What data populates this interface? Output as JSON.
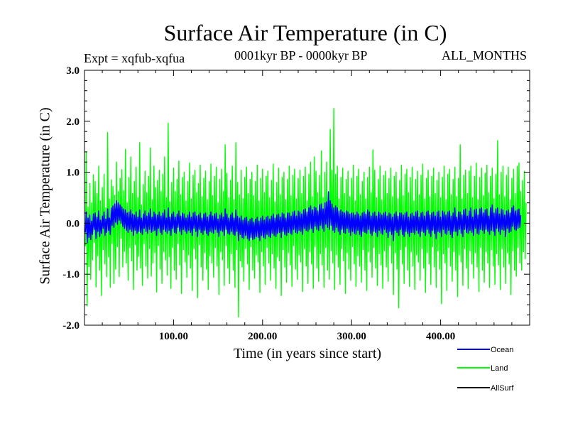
{
  "chart_data": {
    "type": "line",
    "title": "Surface Air Temperature (in C)",
    "experiment": "Expt = xqfub-xqfua",
    "period": "0001kyr BP - 0000kyr BP",
    "months": "ALL_MONTHS",
    "xlabel": "Time (in years since start)",
    "ylabel": "Surface Air Temperature (in C)",
    "xlim": [
      0,
      500
    ],
    "ylim": [
      -2.0,
      3.0
    ],
    "x_ticks": [
      100,
      200,
      300,
      400
    ],
    "x_tick_labels": [
      "100.00",
      "200.00",
      "300.00",
      "400.00"
    ],
    "y_ticks": [
      -2.0,
      -1.0,
      0.0,
      1.0,
      2.0,
      3.0
    ],
    "y_tick_labels": [
      "-2.0",
      "-1.0",
      "0.0",
      "1.0",
      "2.0",
      "3.0"
    ],
    "x_start": 1,
    "x_step": 1,
    "series": [
      {
        "name": "Land",
        "color": "#00ff00",
        "values": [
          -0.45,
          1.4,
          -1.62,
          0.32,
          -0.85,
          0.78,
          -1.1,
          0.4,
          -0.72,
          0.95,
          -0.38,
          0.82,
          -1.25,
          0.58,
          -0.64,
          1.12,
          -0.92,
          0.44,
          -1.42,
          0.7,
          -0.52,
          0.96,
          -0.8,
          0.3,
          -1.05,
          1.78,
          -0.66,
          0.48,
          -1.26,
          0.85,
          -0.4,
          0.72,
          -1.18,
          0.55,
          -0.9,
          1.2,
          -0.46,
          0.62,
          -1.05,
          0.88,
          -0.3,
          1.05,
          -0.86,
          0.64,
          -0.55,
          1.45,
          -0.78,
          0.4,
          -1.12,
          0.9,
          -0.48,
          1.3,
          -0.74,
          0.58,
          -1.3,
          0.82,
          -0.42,
          1.1,
          -0.92,
          0.5,
          -0.65,
          1.58,
          -0.88,
          0.36,
          -1.22,
          0.76,
          -0.4,
          1.02,
          -0.84,
          0.6,
          -1.08,
          0.92,
          -0.5,
          1.48,
          -1.04,
          0.46,
          -0.78,
          1.12,
          -0.58,
          0.7,
          -1.35,
          0.84,
          -0.44,
          1.04,
          -0.9,
          0.62,
          -1.18,
          0.96,
          -0.56,
          1.3,
          -0.72,
          0.5,
          -1.02,
          1.96,
          -0.66,
          0.42,
          -1.28,
          0.8,
          -0.48,
          1.08,
          -0.92,
          0.62,
          -1.1,
          0.86,
          -0.4,
          1.22,
          -0.82,
          0.56,
          -1.38,
          0.9,
          -0.52,
          1.0,
          -0.76,
          0.44,
          -1.06,
          0.82,
          -0.62,
          1.18,
          -0.88,
          0.48,
          -1.32,
          0.94,
          -0.5,
          1.04,
          -0.7,
          0.6,
          -1.46,
          0.78,
          -0.42,
          1.14,
          -0.86,
          0.52,
          -1.12,
          0.88,
          -0.58,
          1.02,
          -0.9,
          0.46,
          -1.3,
          0.82,
          -0.64,
          1.16,
          -0.78,
          0.54,
          -1.06,
          0.92,
          -0.48,
          1.1,
          -0.84,
          0.4,
          -1.4,
          0.86,
          -0.56,
          1.06,
          -0.72,
          0.62,
          -1.22,
          1.54,
          -0.44,
          0.98,
          -0.88,
          0.5,
          -1.18,
          0.84,
          -0.6,
          1.12,
          -0.92,
          0.46,
          -1.26,
          1.58,
          -0.52,
          0.8,
          -1.84,
          0.56,
          -0.74,
          1.04,
          -0.86,
          0.48,
          -1.14,
          0.9,
          -0.5,
          1.1,
          -0.8,
          0.58,
          -1.3,
          0.86,
          -0.46,
          1.0,
          -0.92,
          0.54,
          -1.08,
          0.82,
          -0.62,
          1.14,
          -0.76,
          0.44,
          -1.36,
          0.88,
          -0.56,
          1.06,
          -0.84,
          0.6,
          -1.2,
          0.92,
          -0.48,
          1.02,
          -0.78,
          0.5,
          -1.12,
          0.84,
          -0.6,
          1.16,
          -0.88,
          0.42,
          -1.28,
          0.8,
          -0.66,
          1.08,
          -0.74,
          0.56,
          -1.42,
          0.9,
          -0.52,
          1.0,
          -0.86,
          0.46,
          -1.16,
          0.86,
          -0.58,
          1.12,
          -0.82,
          0.54,
          -1.24,
          0.94,
          -0.44,
          1.06,
          -0.9,
          0.48,
          -1.1,
          0.88,
          -0.62,
          1.04,
          -0.76,
          0.58,
          -1.34,
          0.92,
          -0.5,
          1.1,
          -0.84,
          0.44,
          -1.18,
          0.96,
          -0.56,
          1.2,
          -0.8,
          0.52,
          -1.28,
          1.3,
          -0.46,
          1.02,
          -0.88,
          0.6,
          -1.14,
          0.94,
          -0.6,
          1.42,
          -0.82,
          0.5,
          -1.26,
          1.0,
          -0.48,
          1.2,
          -0.92,
          0.56,
          -1.1,
          1.84,
          -0.54,
          1.04,
          -0.78,
          2.25,
          -1.3,
          0.96,
          -0.62,
          1.12,
          -0.86,
          0.48,
          -1.2,
          0.9,
          -0.5,
          1.08,
          -0.74,
          0.58,
          -1.38,
          0.86,
          -0.58,
          1.02,
          -0.9,
          0.52,
          -1.12,
          0.88,
          -0.46,
          1.14,
          -0.8,
          0.44,
          -1.24,
          0.92,
          -0.64,
          1.06,
          -0.84,
          0.56,
          -1.16,
          0.82,
          -0.52,
          1.0,
          -0.92,
          0.48,
          -1.32,
          0.9,
          -0.56,
          1.1,
          -0.76,
          0.6,
          -1.06,
          1.44,
          -0.48,
          1.04,
          -0.88,
          0.5,
          -1.22,
          0.86,
          -0.6,
          1.12,
          -0.82,
          0.46,
          -1.28,
          0.94,
          -0.54,
          1.02,
          -0.86,
          0.58,
          -1.14,
          0.88,
          -0.44,
          1.08,
          -0.78,
          0.52,
          -1.4,
          0.92,
          -0.58,
          1.0,
          -0.9,
          0.48,
          -1.66,
          0.84,
          -0.52,
          1.14,
          -0.8,
          0.54,
          -1.18,
          0.96,
          -0.46,
          1.06,
          -0.92,
          0.6,
          -1.24,
          0.9,
          -0.56,
          1.1,
          -0.84,
          0.44,
          -1.3,
          0.86,
          -0.62,
          1.02,
          -0.76,
          0.56,
          -1.12,
          0.94,
          -0.5,
          1.16,
          -0.88,
          0.48,
          -1.36,
          0.88,
          -0.58,
          1.04,
          -0.8,
          0.52,
          -1.2,
          0.92,
          -0.46,
          1.08,
          -0.86,
          0.58,
          -1.26,
          0.84,
          -0.54,
          1.0,
          -0.9,
          0.5,
          -1.58,
          0.9,
          -0.6,
          1.12,
          -0.78,
          0.46,
          -1.32,
          0.96,
          -0.48,
          1.06,
          -0.84,
          0.56,
          -1.14,
          0.86,
          -0.56,
          1.1,
          -0.92,
          0.52,
          -1.44,
          0.88,
          -0.62,
          1.54,
          -0.76,
          0.48,
          -1.22,
          0.94,
          -0.5,
          1.04,
          -0.88,
          0.58,
          -1.28,
          1.02,
          -0.54,
          1.12,
          -0.8,
          0.5,
          -1.08,
          0.92,
          -0.58,
          1.18,
          -0.86,
          0.46,
          -1.34,
          0.9,
          -0.48,
          1.08,
          -0.92,
          0.54,
          -1.16,
          0.98,
          -0.56,
          1.14,
          -0.78,
          0.6,
          -1.26,
          0.92,
          -0.52,
          1.08,
          -0.84,
          0.48,
          -1.2,
          0.96,
          -0.6,
          1.62,
          -0.82,
          0.56,
          -1.3,
          1.0,
          -0.5,
          1.12,
          -0.86,
          0.52,
          -1.18,
          0.94,
          -0.58,
          1.1,
          -0.8,
          0.46,
          -1.4,
          0.88,
          -0.54,
          1.06,
          -0.92,
          0.58,
          -1.04,
          1.12,
          -0.48,
          1.18,
          -0.78,
          0.62,
          -0.92,
          0.84,
          -0.56,
          1.02,
          -0.7,
          0.4
        ]
      },
      {
        "name": "Ocean",
        "color": "#0000ff",
        "values": [
          -0.18,
          0.22,
          -0.38,
          0.1,
          -0.28,
          0.16,
          -0.32,
          0.04,
          -0.22,
          0.18,
          -0.12,
          0.2,
          -0.3,
          0.12,
          -0.16,
          0.24,
          -0.26,
          0.06,
          -0.2,
          0.14,
          -0.1,
          0.22,
          -0.24,
          0.08,
          -0.18,
          0.28,
          -0.14,
          0.1,
          -0.22,
          0.3,
          -0.04,
          0.34,
          -0.08,
          0.38,
          0.02,
          0.44,
          -0.02,
          0.4,
          0.06,
          0.36,
          0.0,
          0.32,
          -0.06,
          0.28,
          -0.1,
          0.26,
          -0.14,
          0.2,
          -0.18,
          0.22,
          -0.12,
          0.26,
          -0.16,
          0.18,
          -0.24,
          0.16,
          -0.14,
          0.22,
          -0.2,
          0.12,
          -0.16,
          0.26,
          -0.18,
          0.1,
          -0.22,
          0.18,
          -0.1,
          0.24,
          -0.16,
          0.14,
          -0.2,
          0.2,
          -0.12,
          0.28,
          -0.18,
          0.12,
          -0.16,
          0.22,
          -0.14,
          0.18,
          -0.24,
          0.16,
          -0.1,
          0.22,
          -0.18,
          0.14,
          -0.22,
          0.2,
          -0.12,
          0.26,
          -0.16,
          0.1,
          -0.2,
          0.3,
          -0.14,
          0.12,
          -0.24,
          0.18,
          -0.1,
          0.22,
          -0.18,
          0.12,
          -0.2,
          0.18,
          -0.08,
          0.24,
          -0.16,
          0.14,
          -0.22,
          0.2,
          -0.12,
          0.18,
          -0.16,
          0.1,
          -0.2,
          0.16,
          -0.14,
          0.22,
          -0.18,
          0.12,
          -0.24,
          0.2,
          -0.1,
          0.22,
          -0.16,
          0.14,
          -0.26,
          0.16,
          -0.12,
          0.2,
          -0.18,
          0.1,
          -0.22,
          0.18,
          -0.14,
          0.2,
          -0.2,
          0.12,
          -0.24,
          0.16,
          -0.16,
          0.22,
          -0.18,
          0.14,
          -0.2,
          0.18,
          -0.12,
          0.2,
          -0.18,
          0.08,
          -0.26,
          0.16,
          -0.14,
          0.2,
          -0.16,
          0.12,
          -0.24,
          0.28,
          -0.12,
          0.18,
          -0.2,
          0.1,
          -0.22,
          0.16,
          -0.16,
          0.2,
          -0.22,
          0.1,
          -0.24,
          0.26,
          -0.16,
          0.14,
          -0.34,
          0.1,
          -0.22,
          0.14,
          -0.28,
          0.06,
          -0.3,
          0.1,
          -0.24,
          0.12,
          -0.3,
          0.04,
          -0.34,
          0.08,
          -0.28,
          0.1,
          -0.32,
          0.02,
          -0.3,
          0.08,
          -0.26,
          0.12,
          -0.28,
          0.04,
          -0.34,
          0.1,
          -0.24,
          0.14,
          -0.28,
          0.06,
          -0.3,
          0.12,
          -0.22,
          0.14,
          -0.26,
          0.08,
          -0.28,
          0.14,
          -0.2,
          0.18,
          -0.24,
          0.1,
          -0.26,
          0.16,
          -0.2,
          0.18,
          -0.18,
          0.12,
          -0.28,
          0.2,
          -0.16,
          0.18,
          -0.22,
          0.1,
          -0.24,
          0.2,
          -0.18,
          0.2,
          -0.2,
          0.14,
          -0.22,
          0.22,
          -0.12,
          0.24,
          -0.18,
          0.14,
          -0.2,
          0.24,
          -0.14,
          0.22,
          -0.16,
          0.18,
          -0.22,
          0.26,
          -0.1,
          0.28,
          -0.14,
          0.22,
          -0.16,
          0.3,
          -0.12,
          0.34,
          -0.1,
          0.26,
          -0.18,
          0.32,
          -0.06,
          0.3,
          -0.12,
          0.24,
          -0.14,
          0.36,
          -0.04,
          0.38,
          -0.1,
          0.28,
          -0.16,
          0.4,
          -0.02,
          0.42,
          -0.08,
          0.62,
          -0.12,
          0.44,
          -0.04,
          0.38,
          -0.14,
          0.3,
          -0.18,
          0.34,
          -0.08,
          0.3,
          -0.16,
          0.24,
          -0.22,
          0.26,
          -0.12,
          0.22,
          -0.18,
          0.2,
          -0.2,
          0.24,
          -0.1,
          0.22,
          -0.18,
          0.18,
          -0.24,
          0.2,
          -0.16,
          0.2,
          -0.2,
          0.16,
          -0.22,
          0.22,
          -0.14,
          0.18,
          -0.22,
          0.14,
          -0.26,
          0.2,
          -0.16,
          0.22,
          -0.18,
          0.18,
          -0.2,
          0.26,
          -0.12,
          0.22,
          -0.2,
          0.14,
          -0.24,
          0.2,
          -0.16,
          0.22,
          -0.18,
          0.14,
          -0.26,
          0.22,
          -0.14,
          0.2,
          -0.2,
          0.16,
          -0.22,
          0.2,
          -0.12,
          0.22,
          -0.18,
          0.14,
          -0.28,
          0.2,
          -0.16,
          0.18,
          -0.22,
          0.12,
          -0.34,
          0.18,
          -0.14,
          0.22,
          -0.18,
          0.14,
          -0.24,
          0.2,
          -0.12,
          0.2,
          -0.22,
          0.16,
          -0.26,
          0.2,
          -0.16,
          0.22,
          -0.2,
          0.12,
          -0.26,
          0.18,
          -0.18,
          0.2,
          -0.18,
          0.14,
          -0.22,
          0.22,
          -0.14,
          0.24,
          -0.2,
          0.12,
          -0.26,
          0.2,
          -0.16,
          0.22,
          -0.18,
          0.14,
          -0.24,
          0.22,
          -0.12,
          0.24,
          -0.2,
          0.16,
          -0.26,
          0.2,
          -0.14,
          0.22,
          -0.2,
          0.14,
          -0.3,
          0.22,
          -0.16,
          0.24,
          -0.18,
          0.12,
          -0.26,
          0.24,
          -0.12,
          0.22,
          -0.2,
          0.16,
          -0.22,
          0.22,
          -0.14,
          0.24,
          -0.22,
          0.14,
          -0.28,
          0.2,
          -0.16,
          0.3,
          -0.16,
          0.12,
          -0.24,
          0.22,
          -0.12,
          0.22,
          -0.2,
          0.16,
          -0.26,
          0.26,
          -0.12,
          0.28,
          -0.18,
          0.14,
          -0.2,
          0.24,
          -0.14,
          0.3,
          -0.18,
          0.12,
          -0.24,
          0.26,
          -0.1,
          0.28,
          -0.2,
          0.16,
          -0.22,
          0.28,
          -0.12,
          0.3,
          -0.14,
          0.2,
          -0.2,
          0.26,
          -0.12,
          0.28,
          -0.16,
          0.14,
          -0.22,
          0.3,
          -0.14,
          0.36,
          -0.16,
          0.2,
          -0.24,
          0.28,
          -0.1,
          0.3,
          -0.16,
          0.18,
          -0.22,
          0.28,
          -0.12,
          0.26,
          -0.14,
          0.16,
          -0.26,
          0.24,
          -0.1,
          0.26,
          -0.18,
          0.2,
          -0.16,
          0.3,
          -0.06,
          0.34,
          -0.12,
          0.24,
          -0.14,
          0.26,
          -0.1,
          0.28,
          -0.08,
          0.16
        ]
      },
      {
        "name": "AllSurf",
        "color": "#000000",
        "values": []
      }
    ],
    "legend": [
      {
        "label": "Ocean",
        "color": "#0000ff"
      },
      {
        "label": "Land",
        "color": "#00ff00"
      },
      {
        "label": "AllSurf",
        "color": "#000000"
      }
    ]
  }
}
